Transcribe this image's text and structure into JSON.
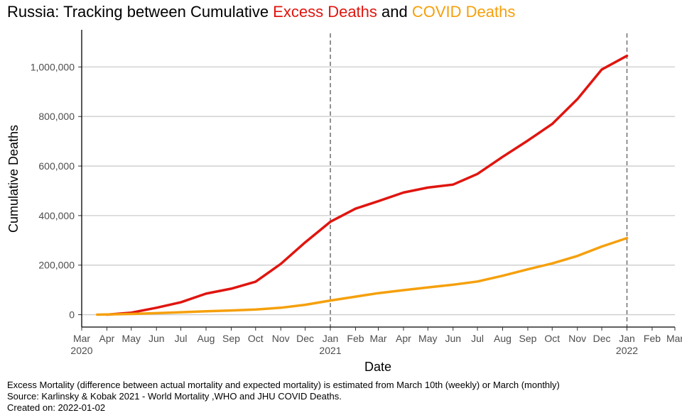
{
  "title": {
    "prefix": "Russia: Tracking between Cumulative ",
    "excess": "Excess Deaths",
    "middle": " and ",
    "covid": "COVID Deaths"
  },
  "footer": {
    "line1": "Excess Mortality (difference between actual mortality and expected mortality) is estimated from March 10th (weekly) or March (monthly)",
    "line2": "Source: Karlinsky & Kobak 2021 - World Mortality ,WHO and JHU COVID Deaths.",
    "line3": "Created on: 2022-01-02"
  },
  "colors": {
    "excess": "#e0150f",
    "covid": "#f5a00c",
    "grid": "#cccccc",
    "vline": "#777777"
  },
  "chart_data": {
    "type": "line",
    "xlabel": "Date",
    "ylabel": "Cumulative Deaths",
    "xlim": [
      "2020-03-01",
      "2022-03-01"
    ],
    "ylim": [
      -50000,
      1150000
    ],
    "grid": "horizontal",
    "x_ticks": [
      {
        "date": "2020-03-01",
        "label": "Mar",
        "year": "2020"
      },
      {
        "date": "2020-04-01",
        "label": "Apr",
        "year": ""
      },
      {
        "date": "2020-05-01",
        "label": "May",
        "year": ""
      },
      {
        "date": "2020-06-01",
        "label": "Jun",
        "year": ""
      },
      {
        "date": "2020-07-01",
        "label": "Jul",
        "year": ""
      },
      {
        "date": "2020-08-01",
        "label": "Aug",
        "year": ""
      },
      {
        "date": "2020-09-01",
        "label": "Sep",
        "year": ""
      },
      {
        "date": "2020-10-01",
        "label": "Oct",
        "year": ""
      },
      {
        "date": "2020-11-01",
        "label": "Nov",
        "year": ""
      },
      {
        "date": "2020-12-01",
        "label": "Dec",
        "year": ""
      },
      {
        "date": "2021-01-01",
        "label": "Jan",
        "year": "2021"
      },
      {
        "date": "2021-02-01",
        "label": "Feb",
        "year": ""
      },
      {
        "date": "2021-03-01",
        "label": "Mar",
        "year": ""
      },
      {
        "date": "2021-04-01",
        "label": "Apr",
        "year": ""
      },
      {
        "date": "2021-05-01",
        "label": "May",
        "year": ""
      },
      {
        "date": "2021-06-01",
        "label": "Jun",
        "year": ""
      },
      {
        "date": "2021-07-01",
        "label": "Jul",
        "year": ""
      },
      {
        "date": "2021-08-01",
        "label": "Aug",
        "year": ""
      },
      {
        "date": "2021-09-01",
        "label": "Sep",
        "year": ""
      },
      {
        "date": "2021-10-01",
        "label": "Oct",
        "year": ""
      },
      {
        "date": "2021-11-01",
        "label": "Nov",
        "year": ""
      },
      {
        "date": "2021-12-01",
        "label": "Dec",
        "year": ""
      },
      {
        "date": "2022-01-01",
        "label": "Jan",
        "year": "2022"
      },
      {
        "date": "2022-02-01",
        "label": "Feb",
        "year": ""
      },
      {
        "date": "2022-03-01",
        "label": "Mar",
        "year": ""
      }
    ],
    "y_ticks": [
      {
        "value": 0,
        "label": "0"
      },
      {
        "value": 200000,
        "label": "200,000"
      },
      {
        "value": 400000,
        "label": "400,000"
      },
      {
        "value": 600000,
        "label": "600,000"
      },
      {
        "value": 800000,
        "label": "800,000"
      },
      {
        "value": 1000000,
        "label": "1,000,000"
      }
    ],
    "vlines": [
      "2021-01-01",
      "2022-01-01"
    ],
    "series": [
      {
        "name": "Excess Deaths",
        "color": "#e0150f",
        "points": [
          [
            "2020-04-01",
            0
          ],
          [
            "2020-05-01",
            8000
          ],
          [
            "2020-06-01",
            28000
          ],
          [
            "2020-07-01",
            50000
          ],
          [
            "2020-08-01",
            85000
          ],
          [
            "2020-09-01",
            105000
          ],
          [
            "2020-10-01",
            133000
          ],
          [
            "2020-11-01",
            205000
          ],
          [
            "2020-12-01",
            292000
          ],
          [
            "2021-01-01",
            375000
          ],
          [
            "2021-02-01",
            428000
          ],
          [
            "2021-03-01",
            458000
          ],
          [
            "2021-04-01",
            493000
          ],
          [
            "2021-05-01",
            513000
          ],
          [
            "2021-06-01",
            525000
          ],
          [
            "2021-07-01",
            568000
          ],
          [
            "2021-08-01",
            637000
          ],
          [
            "2021-09-01",
            703000
          ],
          [
            "2021-10-01",
            770000
          ],
          [
            "2021-11-01",
            870000
          ],
          [
            "2021-12-01",
            990000
          ],
          [
            "2022-01-01",
            1045000
          ]
        ]
      },
      {
        "name": "COVID Deaths",
        "color": "#f5a00c",
        "points": [
          [
            "2020-03-20",
            0
          ],
          [
            "2020-04-01",
            1000
          ],
          [
            "2020-05-01",
            3000
          ],
          [
            "2020-06-01",
            6000
          ],
          [
            "2020-07-01",
            10000
          ],
          [
            "2020-08-01",
            14000
          ],
          [
            "2020-09-01",
            17000
          ],
          [
            "2020-10-01",
            21000
          ],
          [
            "2020-11-01",
            28000
          ],
          [
            "2020-12-01",
            40000
          ],
          [
            "2021-01-01",
            57000
          ],
          [
            "2021-02-01",
            73000
          ],
          [
            "2021-03-01",
            87000
          ],
          [
            "2021-04-01",
            99000
          ],
          [
            "2021-05-01",
            110000
          ],
          [
            "2021-06-01",
            121000
          ],
          [
            "2021-07-01",
            134000
          ],
          [
            "2021-08-01",
            157000
          ],
          [
            "2021-09-01",
            183000
          ],
          [
            "2021-10-01",
            207000
          ],
          [
            "2021-11-01",
            237000
          ],
          [
            "2021-12-01",
            275000
          ],
          [
            "2022-01-01",
            309000
          ]
        ]
      }
    ]
  }
}
